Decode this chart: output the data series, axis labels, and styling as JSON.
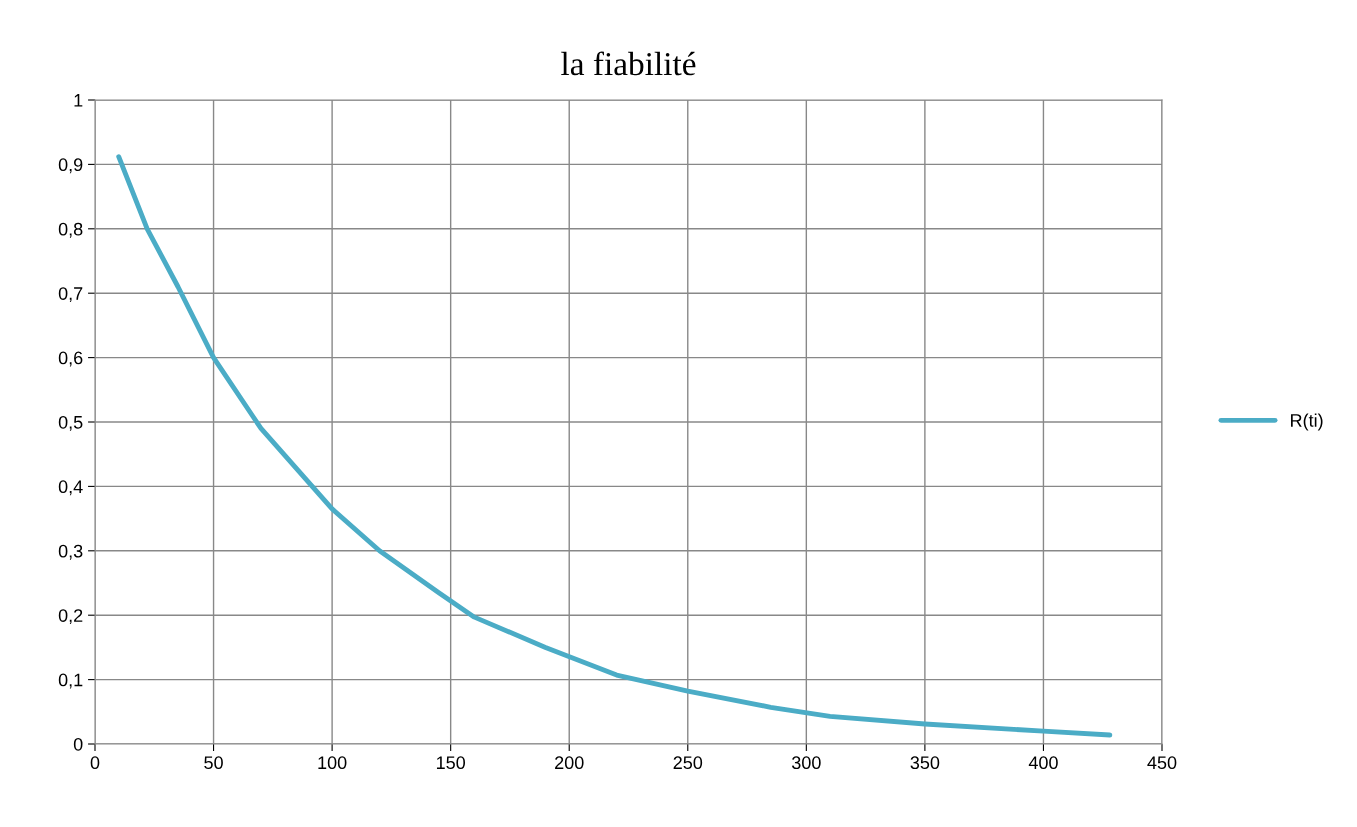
{
  "chart_data": {
    "type": "line",
    "title": "la fiabilité",
    "x": [
      10,
      22,
      35,
      50,
      70,
      100,
      120,
      145,
      160,
      190,
      220,
      250,
      285,
      310,
      350,
      400,
      428
    ],
    "series": [
      {
        "name": "R(ti)",
        "color": "#4bacc6",
        "values": [
          0.912,
          0.8,
          0.71,
          0.6,
          0.49,
          0.365,
          0.3,
          0.235,
          0.197,
          0.15,
          0.107,
          0.082,
          0.057,
          0.043,
          0.031,
          0.02,
          0.014
        ]
      }
    ],
    "xlim": [
      0,
      450
    ],
    "xticks": [
      0,
      50,
      100,
      150,
      200,
      250,
      300,
      350,
      400,
      450
    ],
    "ylim": [
      0,
      1
    ],
    "yticks": [
      0,
      {
        "value": 0.1,
        "label": "0,1"
      },
      {
        "value": 0.2,
        "label": "0,2"
      },
      {
        "value": 0.3,
        "label": "0,3"
      },
      {
        "value": 0.4,
        "label": "0,4"
      },
      {
        "value": 0.5,
        "label": "0,5"
      },
      {
        "value": 0.6,
        "label": "0,6"
      },
      {
        "value": 0.7,
        "label": "0,7"
      },
      {
        "value": 0.8,
        "label": "0,8"
      },
      {
        "value": 0.9,
        "label": "0,9"
      },
      1
    ],
    "grid": true,
    "legend": "right",
    "marker": "none",
    "line_style": "solid"
  }
}
